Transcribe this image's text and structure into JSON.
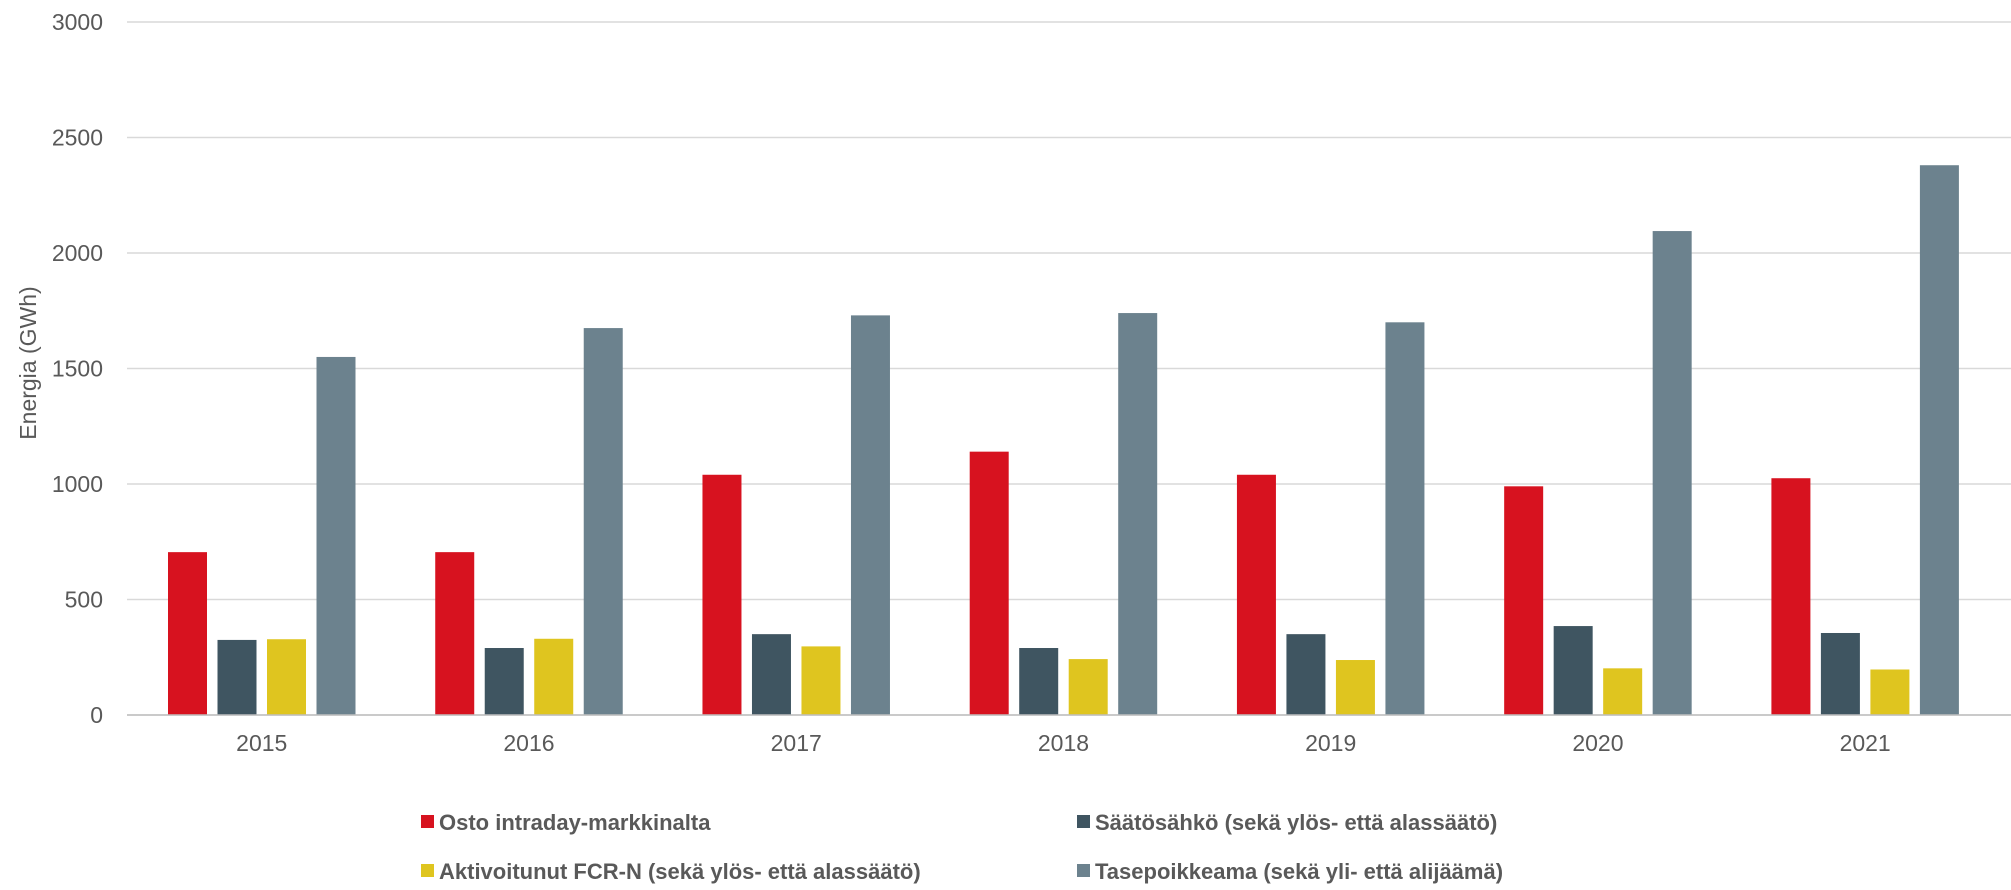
{
  "chart_data": {
    "type": "bar",
    "title": "",
    "xlabel": "",
    "ylabel": "Energia (GWh)",
    "ylim": [
      0,
      3000
    ],
    "yticks": [
      0,
      500,
      1000,
      1500,
      2000,
      2500,
      3000
    ],
    "grid": true,
    "legend_position": "bottom",
    "categories": [
      "2015",
      "2016",
      "2017",
      "2018",
      "2019",
      "2020",
      "2021"
    ],
    "series": [
      {
        "name": "Osto intraday-markkinalta",
        "color": "#d7121f",
        "values": [
          705,
          705,
          1040,
          1140,
          1040,
          990,
          1025
        ]
      },
      {
        "name": "Säätösähkö (sekä ylös- että alassäätö)",
        "color": "#3f5561",
        "values": [
          325,
          290,
          350,
          290,
          350,
          385,
          355
        ]
      },
      {
        "name": "Aktivoitunut FCR-N (sekä ylös- että alassäätö)",
        "color": "#dfc51f",
        "values": [
          328,
          330,
          297,
          242,
          238,
          202,
          197
        ]
      },
      {
        "name": "Tasepoikkeama (sekä yli- että alijäämä)",
        "color": "#6c828e",
        "values": [
          1550,
          1675,
          1730,
          1740,
          1700,
          2095,
          2380
        ]
      }
    ]
  }
}
